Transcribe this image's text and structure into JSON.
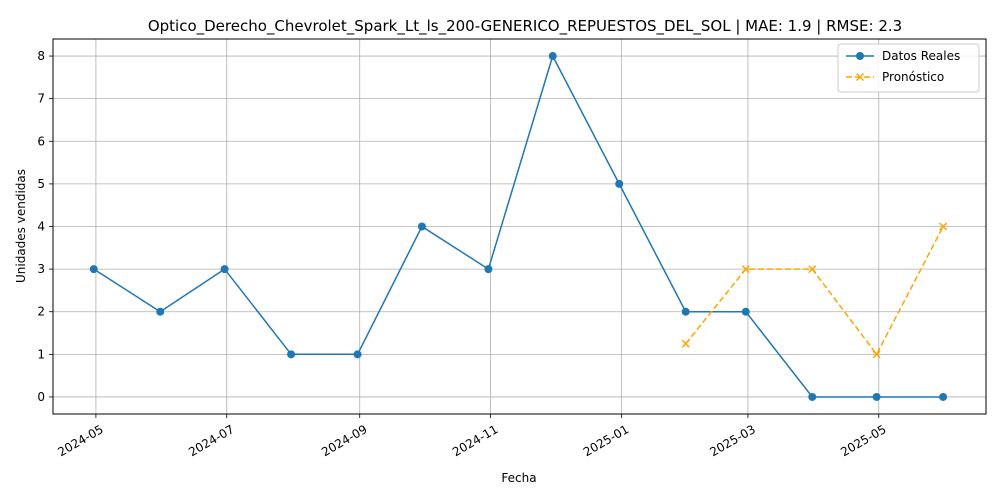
{
  "chart_data": {
    "type": "line",
    "title": "Optico_Derecho_Chevrolet_Spark_Lt_ls_200-GENERICO_REPUESTOS_DEL_SOL | MAE: 1.9 | RMSE: 2.3",
    "xlabel": "Fecha",
    "ylabel": "Unidades vendidas",
    "x_axis_type": "date",
    "xlim": [
      "2024-04-11",
      "2025-06-20"
    ],
    "ylim": [
      -0.4,
      8.4
    ],
    "x_ticks": [
      "2024-05",
      "2024-07",
      "2024-09",
      "2024-11",
      "2025-01",
      "2025-03",
      "2025-05"
    ],
    "y_ticks": [
      0,
      1,
      2,
      3,
      4,
      5,
      6,
      7,
      8
    ],
    "grid": true,
    "legend_position": "top-right",
    "series": [
      {
        "name": "Datos Reales",
        "color": "#1f77b4",
        "style": "solid",
        "marker": "circle",
        "x": [
          "2024-04-30",
          "2024-05-31",
          "2024-06-30",
          "2024-07-31",
          "2024-08-31",
          "2024-09-30",
          "2024-10-31",
          "2024-11-30",
          "2024-12-31",
          "2025-01-31",
          "2025-02-28",
          "2025-03-31",
          "2025-04-30",
          "2025-05-31"
        ],
        "y": [
          3,
          2,
          3,
          1,
          1,
          4,
          3,
          8,
          5,
          2,
          2,
          0,
          0,
          0
        ]
      },
      {
        "name": "Pronóstico",
        "color": "#ffa500",
        "style": "dashed",
        "marker": "x",
        "x": [
          "2025-01-31",
          "2025-02-28",
          "2025-03-31",
          "2025-04-30",
          "2025-05-31"
        ],
        "y": [
          1.25,
          3,
          3,
          1,
          4
        ]
      }
    ]
  }
}
